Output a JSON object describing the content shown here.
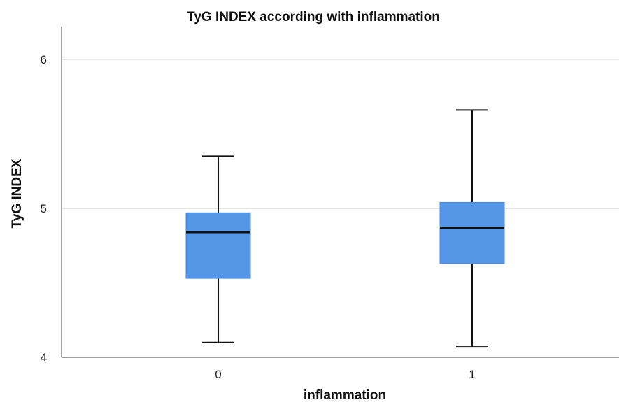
{
  "chart_data": {
    "type": "boxplot",
    "title": "TyG INDEX according with inflammation",
    "xlabel": "inflammation",
    "ylabel": "TyG INDEX",
    "categories": [
      "0",
      "1"
    ],
    "ylim": [
      4,
      6.22
    ],
    "yticks": [
      "4",
      "5",
      "6"
    ],
    "grid": true,
    "grid_color": "#c9c9c9",
    "box_color": "#5597e6",
    "median_color": "#111111",
    "whisker_color": "#111111",
    "series": [
      {
        "category": "0",
        "min": 4.1,
        "q1": 4.53,
        "median": 4.84,
        "q3": 4.97,
        "max": 5.35
      },
      {
        "category": "1",
        "min": 4.07,
        "q1": 4.63,
        "median": 4.87,
        "q3": 5.04,
        "max": 5.66
      }
    ]
  }
}
